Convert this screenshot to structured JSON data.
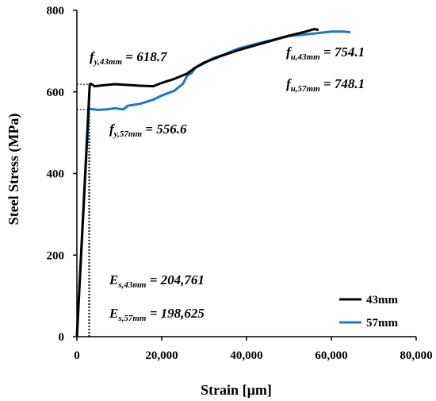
{
  "chart_data": {
    "type": "line",
    "xlabel": "Strain [µm]",
    "ylabel": "Steel Stress (MPa)",
    "xlim": [
      0,
      80000
    ],
    "ylim": [
      0,
      800
    ],
    "x_ticks": [
      "0",
      "20,000",
      "40,000",
      "60,000",
      "80,000"
    ],
    "y_ticks": [
      "0",
      "200",
      "400",
      "600",
      "800"
    ],
    "grid": false,
    "legend_position": "bottom-right",
    "series": [
      {
        "name": "43mm",
        "color": "#000000",
        "points": [
          [
            0,
            0
          ],
          [
            3022,
            618.7
          ],
          [
            3300,
            620
          ],
          [
            4200,
            614
          ],
          [
            6000,
            616
          ],
          [
            9000,
            619
          ],
          [
            12000,
            617
          ],
          [
            15000,
            615
          ],
          [
            18000,
            614
          ],
          [
            20000,
            622
          ],
          [
            23000,
            632
          ],
          [
            26000,
            645
          ],
          [
            28000,
            660
          ],
          [
            30000,
            672
          ],
          [
            34000,
            688
          ],
          [
            38000,
            702
          ],
          [
            42000,
            714
          ],
          [
            46000,
            726
          ],
          [
            50000,
            738
          ],
          [
            54000,
            748
          ],
          [
            56000,
            754.1
          ],
          [
            57000,
            752
          ]
        ]
      },
      {
        "name": "57mm",
        "color": "#1f77c0",
        "points": [
          [
            0,
            0
          ],
          [
            2802,
            556.6
          ],
          [
            3100,
            558
          ],
          [
            5000,
            556
          ],
          [
            7000,
            557
          ],
          [
            9000,
            560
          ],
          [
            11000,
            557
          ],
          [
            12000,
            566
          ],
          [
            15000,
            571
          ],
          [
            18000,
            581
          ],
          [
            20000,
            591
          ],
          [
            23000,
            603
          ],
          [
            25000,
            620
          ],
          [
            26000,
            640
          ],
          [
            27000,
            646
          ],
          [
            28000,
            660
          ],
          [
            30000,
            670
          ],
          [
            32000,
            682
          ],
          [
            35000,
            693
          ],
          [
            38000,
            706
          ],
          [
            42000,
            717
          ],
          [
            46000,
            727
          ],
          [
            50000,
            737
          ],
          [
            55000,
            742
          ],
          [
            60000,
            748
          ],
          [
            63000,
            748.1
          ],
          [
            64500,
            746
          ]
        ]
      }
    ],
    "reference_lines": [
      {
        "series": "43mm",
        "x": 3022,
        "y": 618.7
      },
      {
        "series": "57mm",
        "x": 2802,
        "y": 556.6
      }
    ],
    "annotations": [
      {
        "base": "f",
        "sub": "y,43mm",
        "text": " = 618.7"
      },
      {
        "base": "f",
        "sub": "y,57mm",
        "text": " = 556.6"
      },
      {
        "base": "f",
        "sub": "u,43mm",
        "text": " = 754.1"
      },
      {
        "base": "f",
        "sub": "u,57mm",
        "text": " = 748.1"
      },
      {
        "base": "E",
        "sub": "s,43mm",
        "text": " = 204,761"
      },
      {
        "base": "E",
        "sub": "s,57mm",
        "text": " = 198,625"
      }
    ]
  }
}
